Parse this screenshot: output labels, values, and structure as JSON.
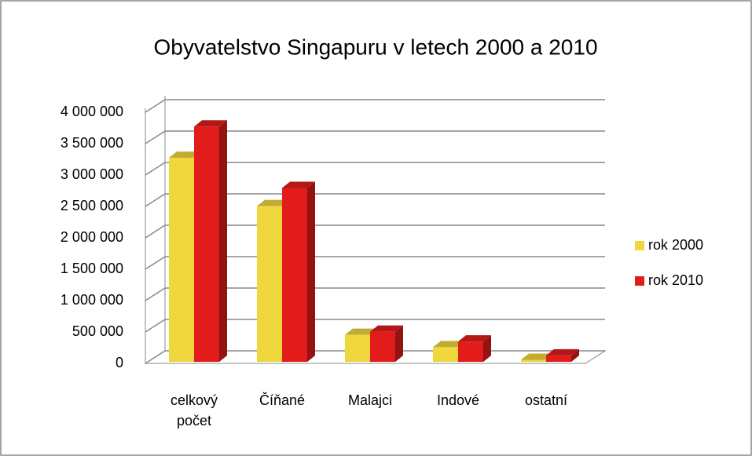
{
  "chart_data": {
    "type": "bar3d",
    "title": "Obyvatelstvo Singapuru v letech 2000 a 2010",
    "categories": [
      "celkový počet",
      "Číňané",
      "Malajci",
      "Indové",
      "ostatní"
    ],
    "series": [
      {
        "name": "rok 2000",
        "color": "#f0d73c",
        "values": [
          3273000,
          2505000,
          454000,
          258000,
          56000
        ]
      },
      {
        "name": "rok 2010",
        "color": "#e21b1b",
        "values": [
          3772000,
          2794000,
          504000,
          348000,
          126000
        ]
      }
    ],
    "ylim": [
      0,
      4000000
    ],
    "yticks": [
      {
        "value": 0,
        "label": "0"
      },
      {
        "value": 500000,
        "label": "500 000"
      },
      {
        "value": 1000000,
        "label": "1 000 000"
      },
      {
        "value": 1500000,
        "label": "1 500 000"
      },
      {
        "value": 2000000,
        "label": "2 000 000"
      },
      {
        "value": 2500000,
        "label": "2 500 000"
      },
      {
        "value": 3000000,
        "label": "3 000 000"
      },
      {
        "value": 3500000,
        "label": "3 500 000"
      },
      {
        "value": 4000000,
        "label": "4 000 000"
      }
    ],
    "grid": true,
    "legend": "right"
  }
}
